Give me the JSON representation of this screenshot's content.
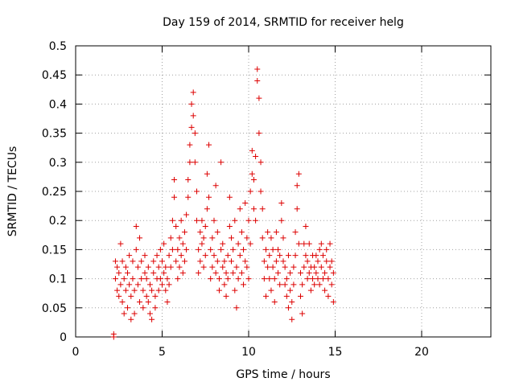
{
  "chart_data": {
    "type": "scatter",
    "title": "Day 159 of 2014, SRMTID for receiver helg",
    "xlabel": "GPS time / hours",
    "ylabel": "SRMTID / TECUs",
    "xlim": [
      0,
      24
    ],
    "ylim": [
      0,
      0.5
    ],
    "x_ticks": [
      0,
      5,
      10,
      15,
      20
    ],
    "y_ticks": [
      0,
      0.05,
      0.1,
      0.15,
      0.2,
      0.25,
      0.3,
      0.35,
      0.4,
      0.45,
      0.5
    ],
    "x_tick_labels": [
      "0",
      "5",
      "10",
      "15",
      "20"
    ],
    "y_tick_labels": [
      "0",
      "0.05",
      "0.1",
      "0.15",
      "0.2",
      "0.25",
      "0.3",
      "0.35",
      "0.4",
      "0.45",
      "0.5"
    ],
    "grid": true,
    "marker": "+",
    "color": "#dd0000",
    "series": [
      {
        "name": "SRMTID",
        "points": [
          [
            2.2,
            0.0
          ],
          [
            2.2,
            0.005
          ],
          [
            2.3,
            0.13
          ],
          [
            2.3,
            0.1
          ],
          [
            2.4,
            0.08
          ],
          [
            2.4,
            0.12
          ],
          [
            2.5,
            0.07
          ],
          [
            2.5,
            0.11
          ],
          [
            2.6,
            0.16
          ],
          [
            2.6,
            0.09
          ],
          [
            2.7,
            0.13
          ],
          [
            2.7,
            0.06
          ],
          [
            2.8,
            0.1
          ],
          [
            2.8,
            0.04
          ],
          [
            2.9,
            0.12
          ],
          [
            2.9,
            0.08
          ],
          [
            3.0,
            0.11
          ],
          [
            3.0,
            0.05
          ],
          [
            3.1,
            0.09
          ],
          [
            3.1,
            0.14
          ],
          [
            3.2,
            0.07
          ],
          [
            3.2,
            0.03
          ],
          [
            3.3,
            0.1
          ],
          [
            3.3,
            0.13
          ],
          [
            3.4,
            0.08
          ],
          [
            3.4,
            0.04
          ],
          [
            3.5,
            0.15
          ],
          [
            3.5,
            0.19
          ],
          [
            3.6,
            0.12
          ],
          [
            3.6,
            0.09
          ],
          [
            3.7,
            0.17
          ],
          [
            3.7,
            0.06
          ],
          [
            3.8,
            0.1
          ],
          [
            3.8,
            0.13
          ],
          [
            3.9,
            0.08
          ],
          [
            3.9,
            0.05
          ],
          [
            4.0,
            0.11
          ],
          [
            4.0,
            0.14
          ],
          [
            4.1,
            0.07
          ],
          [
            4.1,
            0.1
          ],
          [
            4.2,
            0.12
          ],
          [
            4.2,
            0.06
          ],
          [
            4.3,
            0.09
          ],
          [
            4.3,
            0.04
          ],
          [
            4.4,
            0.08
          ],
          [
            4.4,
            0.03
          ],
          [
            4.5,
            0.11
          ],
          [
            4.5,
            0.13
          ],
          [
            4.6,
            0.07
          ],
          [
            4.6,
            0.05
          ],
          [
            4.7,
            0.1
          ],
          [
            4.7,
            0.14
          ],
          [
            4.8,
            0.12
          ],
          [
            4.8,
            0.08
          ],
          [
            4.9,
            0.15
          ],
          [
            4.9,
            0.1
          ],
          [
            5.0,
            0.13
          ],
          [
            5.0,
            0.09
          ],
          [
            5.1,
            0.11
          ],
          [
            5.1,
            0.16
          ],
          [
            5.2,
            0.08
          ],
          [
            5.2,
            0.12
          ],
          [
            5.3,
            0.1
          ],
          [
            5.3,
            0.06
          ],
          [
            5.4,
            0.09
          ],
          [
            5.4,
            0.14
          ],
          [
            5.5,
            0.12
          ],
          [
            5.5,
            0.17
          ],
          [
            5.6,
            0.2
          ],
          [
            5.6,
            0.15
          ],
          [
            5.7,
            0.24
          ],
          [
            5.7,
            0.27
          ],
          [
            5.8,
            0.13
          ],
          [
            5.8,
            0.19
          ],
          [
            5.9,
            0.1
          ],
          [
            5.9,
            0.15
          ],
          [
            6.0,
            0.12
          ],
          [
            6.0,
            0.17
          ],
          [
            6.1,
            0.14
          ],
          [
            6.1,
            0.2
          ],
          [
            6.2,
            0.11
          ],
          [
            6.2,
            0.16
          ],
          [
            6.3,
            0.13
          ],
          [
            6.3,
            0.18
          ],
          [
            6.4,
            0.21
          ],
          [
            6.4,
            0.15
          ],
          [
            6.5,
            0.24
          ],
          [
            6.5,
            0.27
          ],
          [
            6.6,
            0.3
          ],
          [
            6.6,
            0.33
          ],
          [
            6.7,
            0.36
          ],
          [
            6.7,
            0.4
          ],
          [
            6.8,
            0.42
          ],
          [
            6.8,
            0.38
          ],
          [
            6.9,
            0.35
          ],
          [
            6.9,
            0.3
          ],
          [
            7.0,
            0.25
          ],
          [
            7.0,
            0.2
          ],
          [
            7.1,
            0.15
          ],
          [
            7.1,
            0.11
          ],
          [
            7.2,
            0.13
          ],
          [
            7.2,
            0.18
          ],
          [
            7.3,
            0.16
          ],
          [
            7.3,
            0.2
          ],
          [
            7.4,
            0.12
          ],
          [
            7.4,
            0.17
          ],
          [
            7.5,
            0.14
          ],
          [
            7.5,
            0.19
          ],
          [
            7.6,
            0.22
          ],
          [
            7.6,
            0.28
          ],
          [
            7.7,
            0.33
          ],
          [
            7.7,
            0.24
          ],
          [
            7.8,
            0.15
          ],
          [
            7.8,
            0.1
          ],
          [
            7.9,
            0.12
          ],
          [
            7.9,
            0.17
          ],
          [
            8.0,
            0.2
          ],
          [
            8.0,
            0.14
          ],
          [
            8.1,
            0.11
          ],
          [
            8.1,
            0.26
          ],
          [
            8.2,
            0.18
          ],
          [
            8.2,
            0.13
          ],
          [
            8.3,
            0.08
          ],
          [
            8.3,
            0.1
          ],
          [
            8.4,
            0.15
          ],
          [
            8.4,
            0.3
          ],
          [
            8.5,
            0.12
          ],
          [
            8.5,
            0.16
          ],
          [
            8.6,
            0.09
          ],
          [
            8.6,
            0.13
          ],
          [
            8.7,
            0.11
          ],
          [
            8.7,
            0.07
          ],
          [
            8.8,
            0.14
          ],
          [
            8.8,
            0.1
          ],
          [
            8.9,
            0.24
          ],
          [
            8.9,
            0.19
          ],
          [
            9.0,
            0.13
          ],
          [
            9.0,
            0.17
          ],
          [
            9.1,
            0.11
          ],
          [
            9.1,
            0.15
          ],
          [
            9.2,
            0.08
          ],
          [
            9.2,
            0.2
          ],
          [
            9.3,
            0.05
          ],
          [
            9.3,
            0.12
          ],
          [
            9.4,
            0.1
          ],
          [
            9.4,
            0.16
          ],
          [
            9.5,
            0.14
          ],
          [
            9.5,
            0.22
          ],
          [
            9.6,
            0.11
          ],
          [
            9.6,
            0.18
          ],
          [
            9.7,
            0.09
          ],
          [
            9.7,
            0.15
          ],
          [
            9.8,
            0.13
          ],
          [
            9.8,
            0.23
          ],
          [
            9.9,
            0.12
          ],
          [
            9.9,
            0.17
          ],
          [
            10.0,
            0.2
          ],
          [
            10.0,
            0.1
          ],
          [
            10.1,
            0.16
          ],
          [
            10.1,
            0.25
          ],
          [
            10.2,
            0.32
          ],
          [
            10.2,
            0.28
          ],
          [
            10.3,
            0.27
          ],
          [
            10.3,
            0.22
          ],
          [
            10.4,
            0.2
          ],
          [
            10.4,
            0.31
          ],
          [
            10.5,
            0.44
          ],
          [
            10.5,
            0.46
          ],
          [
            10.6,
            0.41
          ],
          [
            10.6,
            0.35
          ],
          [
            10.7,
            0.3
          ],
          [
            10.7,
            0.25
          ],
          [
            10.8,
            0.22
          ],
          [
            10.8,
            0.17
          ],
          [
            10.9,
            0.13
          ],
          [
            10.9,
            0.1
          ],
          [
            11.0,
            0.15
          ],
          [
            11.0,
            0.07
          ],
          [
            11.1,
            0.12
          ],
          [
            11.1,
            0.18
          ],
          [
            11.2,
            0.1
          ],
          [
            11.2,
            0.14
          ],
          [
            11.3,
            0.17
          ],
          [
            11.3,
            0.08
          ],
          [
            11.4,
            0.12
          ],
          [
            11.4,
            0.15
          ],
          [
            11.5,
            0.1
          ],
          [
            11.5,
            0.06
          ],
          [
            11.6,
            0.13
          ],
          [
            11.6,
            0.18
          ],
          [
            11.7,
            0.11
          ],
          [
            11.7,
            0.15
          ],
          [
            11.8,
            0.09
          ],
          [
            11.8,
            0.14
          ],
          [
            11.9,
            0.2
          ],
          [
            11.9,
            0.23
          ],
          [
            12.0,
            0.13
          ],
          [
            12.0,
            0.17
          ],
          [
            12.1,
            0.09
          ],
          [
            12.1,
            0.12
          ],
          [
            12.2,
            0.07
          ],
          [
            12.2,
            0.1
          ],
          [
            12.3,
            0.05
          ],
          [
            12.3,
            0.14
          ],
          [
            12.4,
            0.11
          ],
          [
            12.4,
            0.08
          ],
          [
            12.5,
            0.03
          ],
          [
            12.5,
            0.06
          ],
          [
            12.6,
            0.09
          ],
          [
            12.6,
            0.12
          ],
          [
            12.7,
            0.14
          ],
          [
            12.7,
            0.18
          ],
          [
            12.8,
            0.22
          ],
          [
            12.8,
            0.26
          ],
          [
            12.9,
            0.28
          ],
          [
            12.9,
            0.16
          ],
          [
            13.0,
            0.11
          ],
          [
            13.0,
            0.07
          ],
          [
            13.1,
            0.04
          ],
          [
            13.1,
            0.09
          ],
          [
            13.2,
            0.12
          ],
          [
            13.2,
            0.16
          ],
          [
            13.3,
            0.19
          ],
          [
            13.3,
            0.14
          ],
          [
            13.4,
            0.1
          ],
          [
            13.4,
            0.13
          ],
          [
            13.5,
            0.16
          ],
          [
            13.5,
            0.11
          ],
          [
            13.6,
            0.08
          ],
          [
            13.6,
            0.12
          ],
          [
            13.7,
            0.14
          ],
          [
            13.7,
            0.1
          ],
          [
            13.8,
            0.12
          ],
          [
            13.8,
            0.09
          ],
          [
            13.9,
            0.11
          ],
          [
            13.9,
            0.14
          ],
          [
            14.0,
            0.1
          ],
          [
            14.0,
            0.13
          ],
          [
            14.1,
            0.15
          ],
          [
            14.1,
            0.09
          ],
          [
            14.2,
            0.12
          ],
          [
            14.2,
            0.16
          ],
          [
            14.3,
            0.1
          ],
          [
            14.3,
            0.14
          ],
          [
            14.4,
            0.08
          ],
          [
            14.4,
            0.11
          ],
          [
            14.5,
            0.13
          ],
          [
            14.5,
            0.15
          ],
          [
            14.6,
            0.1
          ],
          [
            14.6,
            0.07
          ],
          [
            14.7,
            0.12
          ],
          [
            14.7,
            0.16
          ],
          [
            14.8,
            0.09
          ],
          [
            14.8,
            0.13
          ],
          [
            14.9,
            0.11
          ],
          [
            14.9,
            0.06
          ]
        ]
      }
    ]
  }
}
